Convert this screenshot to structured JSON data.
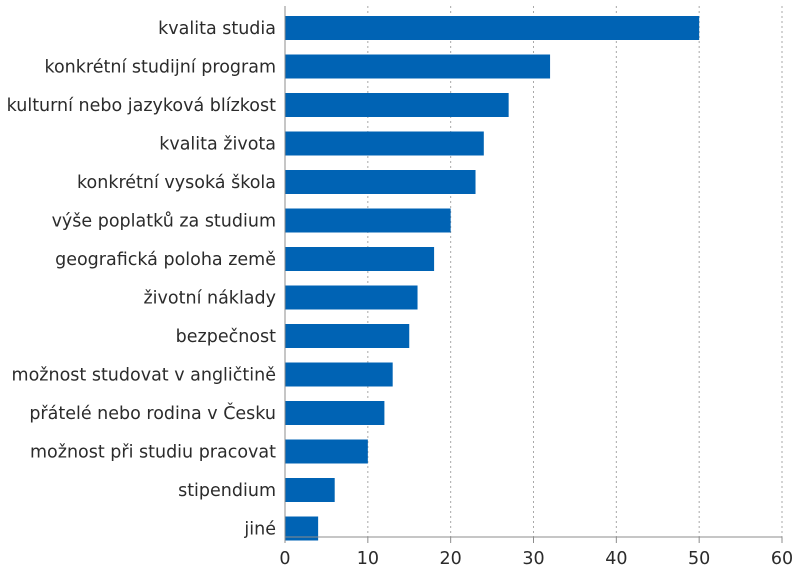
{
  "chart_data": {
    "type": "bar",
    "orientation": "horizontal",
    "categories": [
      "kvalita studia",
      "konkrétní studijní program",
      "kulturní nebo jazyková blízkost",
      "kvalita života",
      "konkrétní vysoká škola",
      "výše poplatků za studium",
      "geografická poloha země",
      "životní náklady",
      "bezpečnost",
      "možnost studovat v angličtině",
      "přátelé nebo rodina v Česku",
      "možnost při studiu pracovat",
      "stipendium",
      "jiné"
    ],
    "values": [
      50,
      32,
      27,
      24,
      23,
      20,
      18,
      16,
      15,
      13,
      12,
      10,
      6,
      4
    ],
    "title": "",
    "xlabel": "",
    "ylabel": "",
    "xlim": [
      0,
      60
    ],
    "xticks": [
      "0",
      "10",
      "20",
      "30",
      "40",
      "50",
      "60"
    ],
    "grid": "vertical dotted",
    "legend": "none",
    "bar_color": "#0063b4"
  }
}
